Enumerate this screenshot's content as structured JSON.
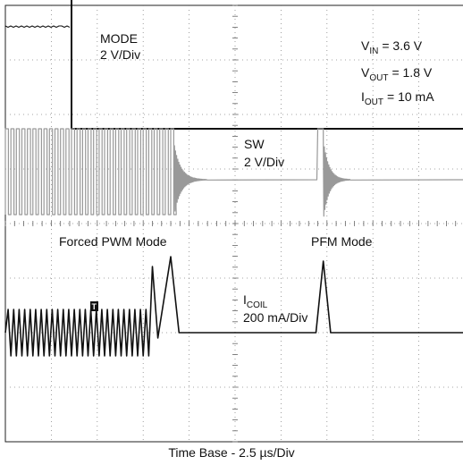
{
  "chart_data": {
    "type": "line",
    "title": "",
    "caption": "Time Base - 2.5 µs/Div",
    "grid": true,
    "grid_divisions": {
      "x": 10,
      "y": 8
    },
    "time_per_div_us": 2.5,
    "x_range_us": [
      0,
      25
    ],
    "channels": [
      {
        "name": "MODE",
        "scale_label": "2 V/Div",
        "scale_v_per_div": 2,
        "color": "#111111",
        "description": "Logic high (forced PWM) for the first ~3.6 µs, then low (PFM).",
        "x_us": [
          0,
          3.6,
          3.6,
          25
        ],
        "y_div": [
          3.8,
          3.8,
          -0.2,
          -0.2
        ]
      },
      {
        "name": "SW",
        "scale_label": "2 V/Div",
        "scale_v_per_div": 2,
        "color": "#999999",
        "description": "Square-wave switching until ~9.2 µs, ringing to settled level, single PFM pulse near 17.3 µs.",
        "switching_end_us": 9.2,
        "pfm_pulse_us": 17.3
      },
      {
        "name": "I_COIL",
        "scale_label": "200 mA/Div",
        "scale_ma_per_div": 200,
        "color": "#111111",
        "description": "Triangular ripple in PWM, two growing peaks at mode change, near zero, then single PFM triangle near 17.3 µs.",
        "ripple_peak_us": [
          8.0,
          9.0
        ],
        "pfm_peak_us": 17.3
      }
    ],
    "annotations": {
      "mode_label": "MODE",
      "mode_scale": "2 V/Div",
      "sw_label": "SW",
      "sw_scale": "2 V/Div",
      "icoil_label_main": "I",
      "icoil_label_sub": "COIL",
      "icoil_scale": "200 mA/Div",
      "forced_pwm": "Forced PWM Mode",
      "pfm": "PFM Mode",
      "vin_main": "V",
      "vin_sub": "IN",
      "vin_value": "= 3.6 V",
      "vout_main": "V",
      "vout_sub": "OUT",
      "vout_value": "= 1.8 V",
      "iout_main": "I",
      "iout_sub": "OUT",
      "iout_value": "= 10 mA",
      "trigger_marker": "T"
    }
  }
}
